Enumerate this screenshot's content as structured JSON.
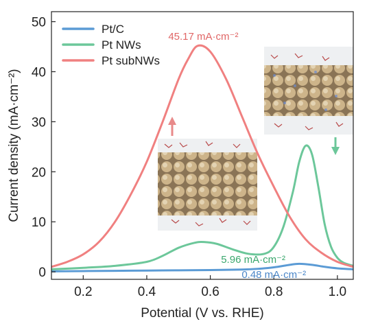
{
  "chart_data": {
    "type": "line",
    "title": "",
    "xlabel": "Potential (V vs. RHE)",
    "ylabel": "Current density (mA·cm⁻²)",
    "xlim": [
      0.1,
      1.05
    ],
    "ylim": [
      -1.5,
      52
    ],
    "x_ticks": [
      0.2,
      0.4,
      0.6,
      0.8,
      1.0
    ],
    "x_tick_labels": [
      "0.2",
      "0.4",
      "0.6",
      "0.8",
      "1.0"
    ],
    "y_ticks": [
      0,
      10,
      20,
      30,
      40,
      50
    ],
    "y_tick_labels": [
      "0",
      "10",
      "20",
      "30",
      "40",
      "50"
    ],
    "grid": false,
    "legend_position": "top-left",
    "series": [
      {
        "name": "Pt/C",
        "color": "#5b9bd5",
        "x": [
          0.1,
          0.2,
          0.3,
          0.4,
          0.5,
          0.6,
          0.7,
          0.75,
          0.8,
          0.85,
          0.88,
          0.92,
          0.96,
          1.0,
          1.05
        ],
        "y": [
          0.1,
          0.15,
          0.2,
          0.25,
          0.3,
          0.35,
          0.45,
          0.6,
          0.9,
          1.4,
          1.6,
          1.4,
          1.0,
          0.7,
          0.5
        ]
      },
      {
        "name": "Pt NWs",
        "color": "#6cc79a",
        "x": [
          0.1,
          0.2,
          0.3,
          0.4,
          0.45,
          0.5,
          0.55,
          0.58,
          0.62,
          0.67,
          0.72,
          0.77,
          0.8,
          0.83,
          0.86,
          0.88,
          0.9,
          0.92,
          0.94,
          0.96,
          0.98,
          1.0,
          1.02,
          1.05
        ],
        "y": [
          0.5,
          0.8,
          1.2,
          2.0,
          3.2,
          4.8,
          5.8,
          5.96,
          5.6,
          4.5,
          3.6,
          3.6,
          5.0,
          9.0,
          16.0,
          22.0,
          25.2,
          23.5,
          17.0,
          9.5,
          5.0,
          2.8,
          1.8,
          1.2
        ]
      },
      {
        "name": "Pt subNWs",
        "color": "#f08080",
        "x": [
          0.1,
          0.15,
          0.2,
          0.25,
          0.3,
          0.35,
          0.4,
          0.45,
          0.5,
          0.53,
          0.56,
          0.6,
          0.65,
          0.7,
          0.75,
          0.8,
          0.85,
          0.9,
          0.95,
          1.0,
          1.05
        ],
        "y": [
          1.0,
          2.0,
          3.5,
          6.0,
          10.0,
          15.5,
          22.0,
          30.0,
          38.5,
          42.5,
          45.17,
          44.0,
          38.5,
          31.0,
          23.5,
          17.0,
          11.0,
          6.5,
          3.8,
          2.0,
          1.0
        ]
      }
    ],
    "annotations": [
      {
        "text": "45.17 mA·cm⁻²",
        "color": "#e06666",
        "x": 0.578,
        "y": 46.4
      },
      {
        "text": "5.96 mA·cm⁻²",
        "color": "#3aa76d",
        "x": 0.735,
        "y": 1.8
      },
      {
        "text": "0.48 mA·cm⁻²",
        "color": "#4a86c8",
        "x": 0.8,
        "y": -1.2
      }
    ]
  }
}
